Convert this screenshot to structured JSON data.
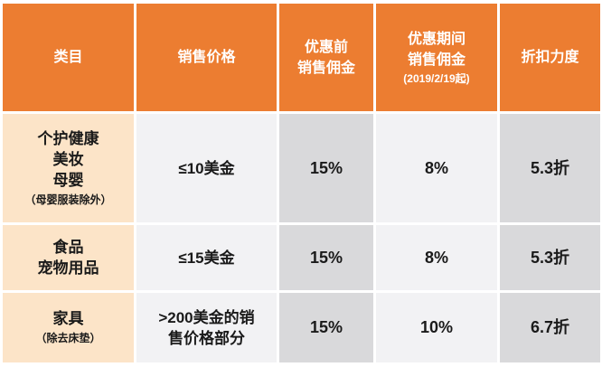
{
  "header": {
    "category": "类目",
    "price": "销售价格",
    "before_line1": "优惠前",
    "before_line2": "销售佣金",
    "during_line1": "优惠期间",
    "during_line2": "销售佣金",
    "during_note": "(2019/2/19起)",
    "discount": "折扣力度"
  },
  "rows": [
    {
      "category_lines": [
        "个护健康",
        "美妆",
        "母婴"
      ],
      "category_note": "（母婴服装除外）",
      "price_lines": [
        "≤10美金"
      ],
      "before": "15%",
      "during": "8%",
      "discount": "5.3折"
    },
    {
      "category_lines": [
        "食品",
        "宠物用品"
      ],
      "category_note": "",
      "price_lines": [
        "≤15美金"
      ],
      "before": "15%",
      "during": "8%",
      "discount": "5.3折"
    },
    {
      "category_lines": [
        "家具"
      ],
      "category_note": "（除去床垫）",
      "price_lines": [
        ">200美金的销",
        "售价格部分"
      ],
      "before": "15%",
      "during": "10%",
      "discount": "6.7折"
    }
  ],
  "colors": {
    "header": "#EC7D31",
    "category": "#FCE4C8",
    "light": "#F2F2F4",
    "dark": "#D9D9DB"
  }
}
